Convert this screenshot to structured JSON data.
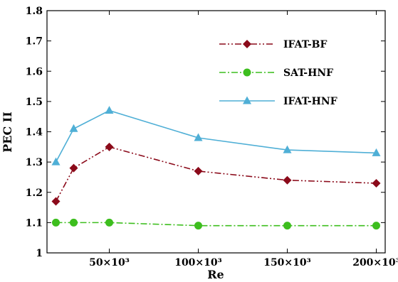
{
  "chart_data": {
    "type": "line",
    "title": "",
    "xlabel": "Re",
    "ylabel": "PEC II",
    "xlim": [
      15000,
      205000
    ],
    "ylim": [
      1,
      1.8
    ],
    "x_ticks": [
      {
        "value": 50000,
        "label": "50×10³"
      },
      {
        "value": 100000,
        "label": "100×10³"
      },
      {
        "value": 150000,
        "label": "150×10³"
      },
      {
        "value": 200000,
        "label": "200×10³"
      }
    ],
    "y_ticks": [
      {
        "value": 1,
        "label": "1"
      },
      {
        "value": 1.1,
        "label": "1.1"
      },
      {
        "value": 1.2,
        "label": "1.2"
      },
      {
        "value": 1.3,
        "label": "1.3"
      },
      {
        "value": 1.4,
        "label": "1.4"
      },
      {
        "value": 1.5,
        "label": "1.5"
      },
      {
        "value": 1.6,
        "label": "1.6"
      },
      {
        "value": 1.7,
        "label": "1.7"
      },
      {
        "value": 1.8,
        "label": "1.8"
      }
    ],
    "grid": false,
    "legend_position": "top-right",
    "series": [
      {
        "name": "IFAT-BF",
        "color": "#8B0A1A",
        "marker": "diamond",
        "line_style": "dash-dot-dot",
        "x": [
          20000,
          30000,
          50000,
          100000,
          150000,
          200000
        ],
        "y": [
          1.17,
          1.28,
          1.35,
          1.27,
          1.24,
          1.23
        ]
      },
      {
        "name": "SAT-HNF",
        "color": "#3DBE1E",
        "marker": "circle",
        "line_style": "dash-dot",
        "x": [
          20000,
          30000,
          50000,
          100000,
          150000,
          200000
        ],
        "y": [
          1.1,
          1.1,
          1.1,
          1.09,
          1.09,
          1.09
        ]
      },
      {
        "name": "IFAT-HNF",
        "color": "#4FAFD6",
        "marker": "triangle",
        "line_style": "solid",
        "x": [
          20000,
          30000,
          50000,
          100000,
          150000,
          200000
        ],
        "y": [
          1.3,
          1.41,
          1.47,
          1.38,
          1.34,
          1.33
        ]
      }
    ]
  }
}
